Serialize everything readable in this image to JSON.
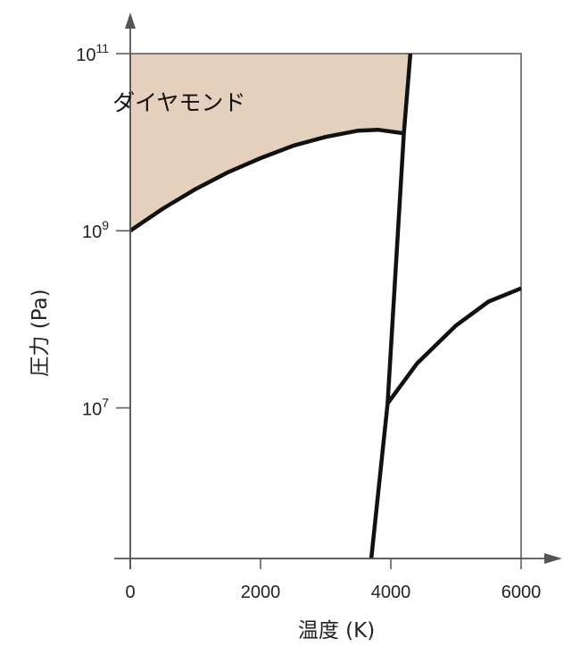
{
  "chart_data": {
    "type": "line",
    "title": "",
    "xlabel": "温度 (K)",
    "ylabel": "圧力 (Pa)",
    "x_scale": "linear",
    "y_scale": "log",
    "xlim": [
      0,
      6000
    ],
    "ylim_exponents": [
      5.3,
      11
    ],
    "x_ticks": [
      {
        "value": 0,
        "label": "0"
      },
      {
        "value": 2000,
        "label": "2000"
      },
      {
        "value": 4000,
        "label": "4000"
      },
      {
        "value": 6000,
        "label": "6000"
      }
    ],
    "y_ticks": [
      {
        "exponent": 7,
        "base": "10",
        "sup": "7"
      },
      {
        "exponent": 9,
        "base": "10",
        "sup": "9"
      },
      {
        "exponent": 11,
        "base": "10",
        "sup": "11"
      }
    ],
    "grid": false,
    "colors": {
      "diamond_fill": "#e5cfbd",
      "line": "#111111",
      "axis": "#555555",
      "frame": "#555555"
    },
    "regions": [
      {
        "name": "ダイヤモンド",
        "label": "ダイヤモンド",
        "label_anchor": {
          "x": 750,
          "log_p": 10.45
        }
      }
    ],
    "series": [
      {
        "id": "diamond-lower-boundary",
        "points": [
          [
            0,
            9.0
          ],
          [
            500,
            9.25
          ],
          [
            1000,
            9.47
          ],
          [
            1500,
            9.66
          ],
          [
            2000,
            9.82
          ],
          [
            2500,
            9.96
          ],
          [
            3000,
            10.06
          ],
          [
            3500,
            10.13
          ],
          [
            3800,
            10.14
          ],
          [
            4200,
            10.1
          ]
        ]
      },
      {
        "id": "steep-boundary",
        "points": [
          [
            3700,
            5.3
          ],
          [
            3950,
            7.05
          ],
          [
            4200,
            10.1
          ],
          [
            4300,
            11.0
          ]
        ]
      },
      {
        "id": "right-boundary",
        "points": [
          [
            3950,
            7.05
          ],
          [
            4400,
            7.5
          ],
          [
            5000,
            7.93
          ],
          [
            5500,
            8.2
          ],
          [
            6000,
            8.35
          ]
        ]
      }
    ]
  }
}
